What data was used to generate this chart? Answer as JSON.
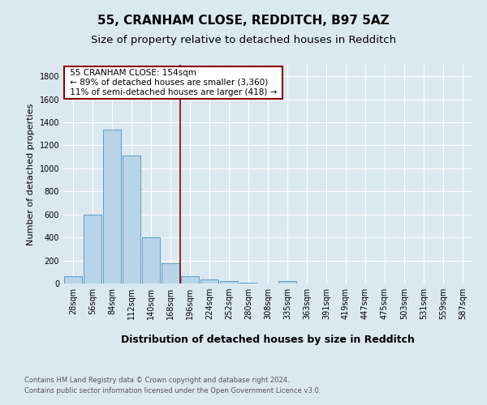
{
  "title": "55, CRANHAM CLOSE, REDDITCH, B97 5AZ",
  "subtitle": "Size of property relative to detached houses in Redditch",
  "xlabel": "Distribution of detached houses by size in Redditch",
  "ylabel": "Number of detached properties",
  "footer1": "Contains HM Land Registry data © Crown copyright and database right 2024.",
  "footer2": "Contains public sector information licensed under the Open Government Licence v3.0.",
  "annotation_title": "55 CRANHAM CLOSE: 154sqm",
  "annotation_line1": "← 89% of detached houses are smaller (3,360)",
  "annotation_line2": "11% of semi-detached houses are larger (418) →",
  "bar_categories": [
    "28sqm",
    "56sqm",
    "84sqm",
    "112sqm",
    "140sqm",
    "168sqm",
    "196sqm",
    "224sqm",
    "252sqm",
    "280sqm",
    "308sqm",
    "335sqm",
    "363sqm",
    "391sqm",
    "419sqm",
    "447sqm",
    "475sqm",
    "503sqm",
    "531sqm",
    "559sqm",
    "587sqm"
  ],
  "bar_values": [
    60,
    600,
    1340,
    1110,
    400,
    175,
    65,
    35,
    20,
    5,
    0,
    20,
    0,
    0,
    0,
    0,
    0,
    0,
    0,
    0,
    0
  ],
  "bar_color": "#b8d4e8",
  "bar_edge_color": "#5a9fc5",
  "vline_color": "#8b0000",
  "vline_x": 5.5,
  "ylim": [
    0,
    1900
  ],
  "annotation_box_color": "white",
  "annotation_box_edge": "#8b0000",
  "bg_color": "#dce8f0",
  "grid_color": "white",
  "title_fontsize": 11,
  "subtitle_fontsize": 9.5,
  "ylabel_fontsize": 8,
  "xlabel_fontsize": 9,
  "tick_fontsize": 7,
  "footer_fontsize": 6,
  "annotation_fontsize": 7.5
}
